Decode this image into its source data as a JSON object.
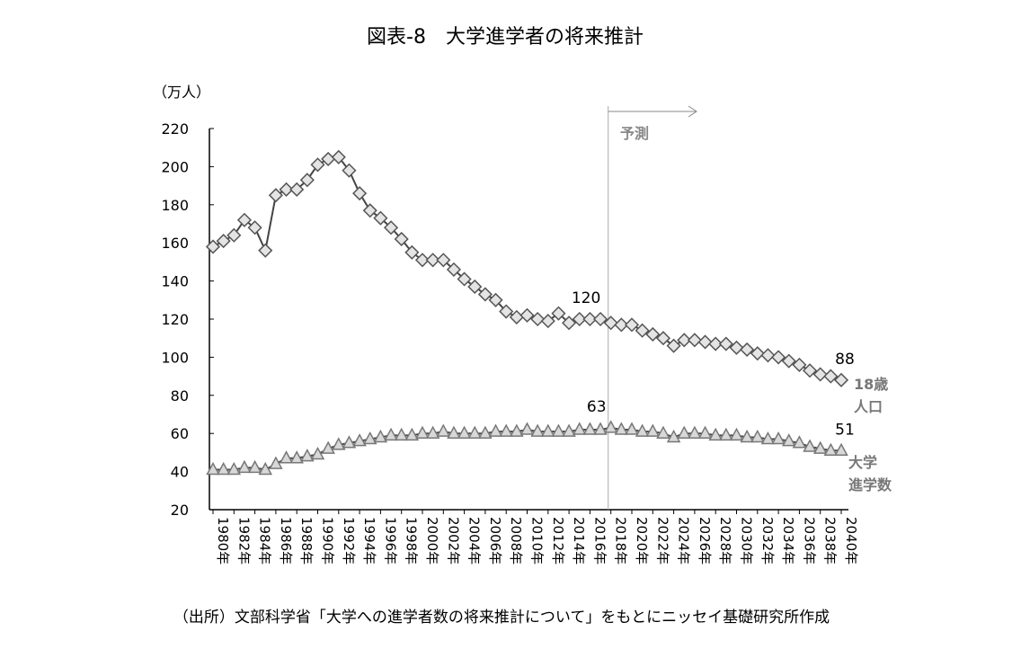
{
  "chart_data": {
    "type": "line",
    "title": "図表-8　大学進学者の将来推計",
    "ylabel": "（万人）",
    "ylim": [
      20,
      220
    ],
    "yticks": [
      20,
      40,
      60,
      80,
      100,
      120,
      140,
      160,
      180,
      200,
      220
    ],
    "x": [
      1980,
      1981,
      1982,
      1983,
      1984,
      1985,
      1986,
      1987,
      1988,
      1989,
      1990,
      1991,
      1992,
      1993,
      1994,
      1995,
      1996,
      1997,
      1998,
      1999,
      2000,
      2001,
      2002,
      2003,
      2004,
      2005,
      2006,
      2007,
      2008,
      2009,
      2010,
      2011,
      2012,
      2013,
      2014,
      2015,
      2016,
      2017,
      2018,
      2019,
      2020,
      2021,
      2022,
      2023,
      2024,
      2025,
      2026,
      2027,
      2028,
      2029,
      2030,
      2031,
      2032,
      2033,
      2034,
      2035,
      2036,
      2037,
      2038,
      2039,
      2040
    ],
    "xtick_labels": [
      "1980年",
      "1982年",
      "1984年",
      "1986年",
      "1988年",
      "1990年",
      "1992年",
      "1994年",
      "1996年",
      "1998年",
      "2000年",
      "2002年",
      "2004年",
      "2006年",
      "2008年",
      "2010年",
      "2012年",
      "2014年",
      "2016年",
      "2018年",
      "2020年",
      "2022年",
      "2024年",
      "2026年",
      "2028年",
      "2030年",
      "2032年",
      "2034年",
      "2036年",
      "2038年",
      "2040年"
    ],
    "series": [
      {
        "name": "18歳人口",
        "label_lines": [
          "18歳",
          "人口"
        ],
        "marker": "diamond",
        "values": [
          158,
          161,
          164,
          172,
          168,
          156,
          185,
          188,
          188,
          193,
          201,
          204,
          205,
          198,
          186,
          177,
          173,
          168,
          162,
          155,
          151,
          151,
          151,
          146,
          141,
          137,
          133,
          130,
          124,
          121,
          122,
          120,
          119,
          123,
          118,
          120,
          120,
          120,
          118,
          117,
          117,
          114,
          112,
          110,
          106,
          109,
          109,
          108,
          107,
          107,
          105,
          104,
          102,
          101,
          100,
          98,
          96,
          93,
          91,
          90,
          88
        ]
      },
      {
        "name": "大学進学数",
        "label_lines": [
          "大学",
          "進学数"
        ],
        "marker": "triangle",
        "values": [
          41,
          41,
          41,
          42,
          42,
          41,
          44,
          47,
          47,
          48,
          49,
          52,
          54,
          55,
          56,
          57,
          58,
          59,
          59,
          59,
          60,
          60,
          61,
          60,
          60,
          60,
          60,
          61,
          61,
          61,
          62,
          61,
          61,
          61,
          61,
          62,
          62,
          62,
          63,
          62,
          62,
          61,
          61,
          60,
          58,
          60,
          60,
          60,
          59,
          59,
          59,
          58,
          58,
          57,
          57,
          56,
          55,
          53,
          52,
          51,
          51
        ]
      }
    ],
    "annotations": [
      {
        "series": 0,
        "year": 2017,
        "text": "120"
      },
      {
        "series": 0,
        "year": 2040,
        "text": "88"
      },
      {
        "series": 1,
        "year": 2018,
        "text": "63"
      },
      {
        "series": 1,
        "year": 2040,
        "text": "51"
      }
    ],
    "forecast": {
      "start_year": 2018,
      "label": "予測"
    },
    "source": "（出所）文部科学省「大学への進学者数の将来推計について」をもとにニッセイ基礎研究所作成"
  }
}
